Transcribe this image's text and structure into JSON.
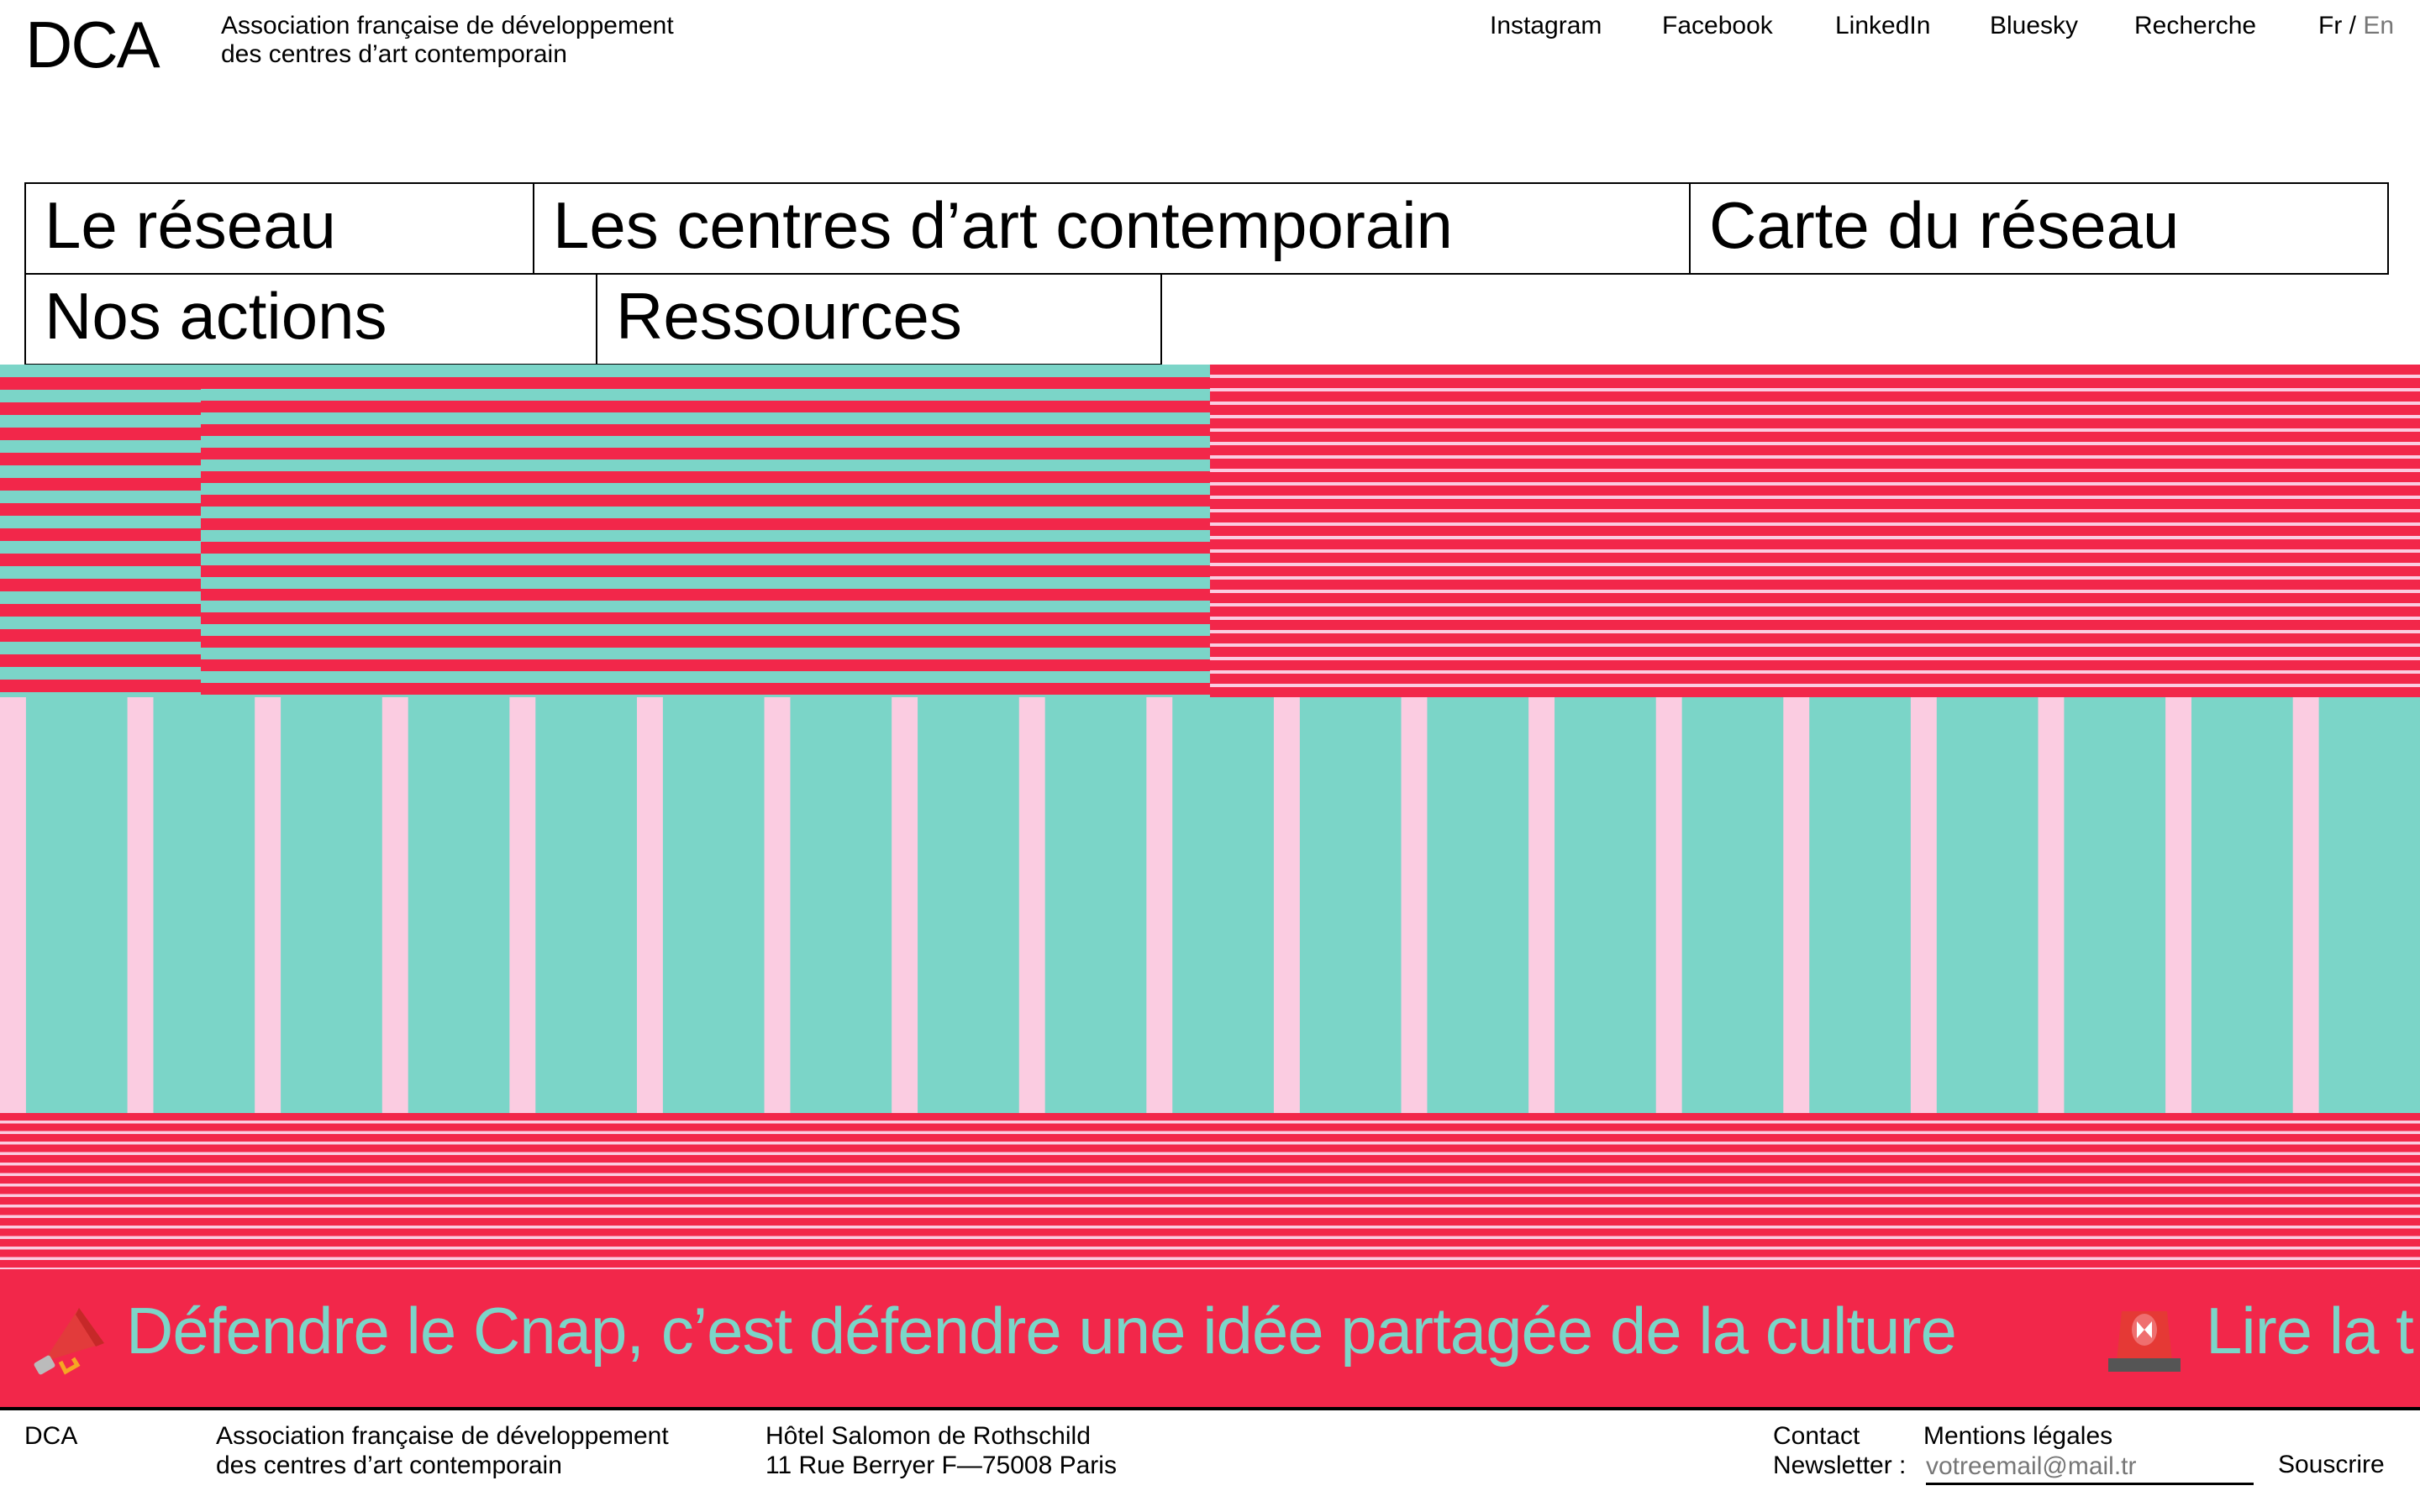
{
  "header": {
    "logo": "DCA",
    "tagline_line1": "Association française de développement",
    "tagline_line2": "des centres d’art contemporain",
    "links": [
      "Instagram",
      "Facebook",
      "LinkedIn",
      "Bluesky",
      "Recherche"
    ],
    "lang_fr": "Fr",
    "lang_sep": " / ",
    "lang_en": "En"
  },
  "menu": {
    "items": [
      "Le réseau",
      "Les centres d’art contemporain",
      "Carte du réseau",
      "Nos actions",
      "Ressources"
    ]
  },
  "banner": {
    "icon_left": "megaphone-icon",
    "text": "Défendre le Cnap, c’est défendre une idée partagée de la culture",
    "icon_right": "police-light-icon",
    "text_continued": "Lire la t"
  },
  "footer": {
    "logo": "DCA",
    "tagline_line1": "Association française de développement",
    "tagline_line2": "des centres d’art contemporain",
    "address_line1": "Hôtel Salomon de Rothschild",
    "address_line2": "11 Rue Berryer F—75008 Paris",
    "contact": "Contact",
    "legal": "Mentions légales",
    "newsletter_label": "Newsletter :",
    "newsletter_placeholder": "votreemail@mail.tr",
    "subscribe": "Souscrire"
  },
  "colors": {
    "red": "#f2274a",
    "teal": "#7bd5c8",
    "pink": "#fbcce1"
  }
}
